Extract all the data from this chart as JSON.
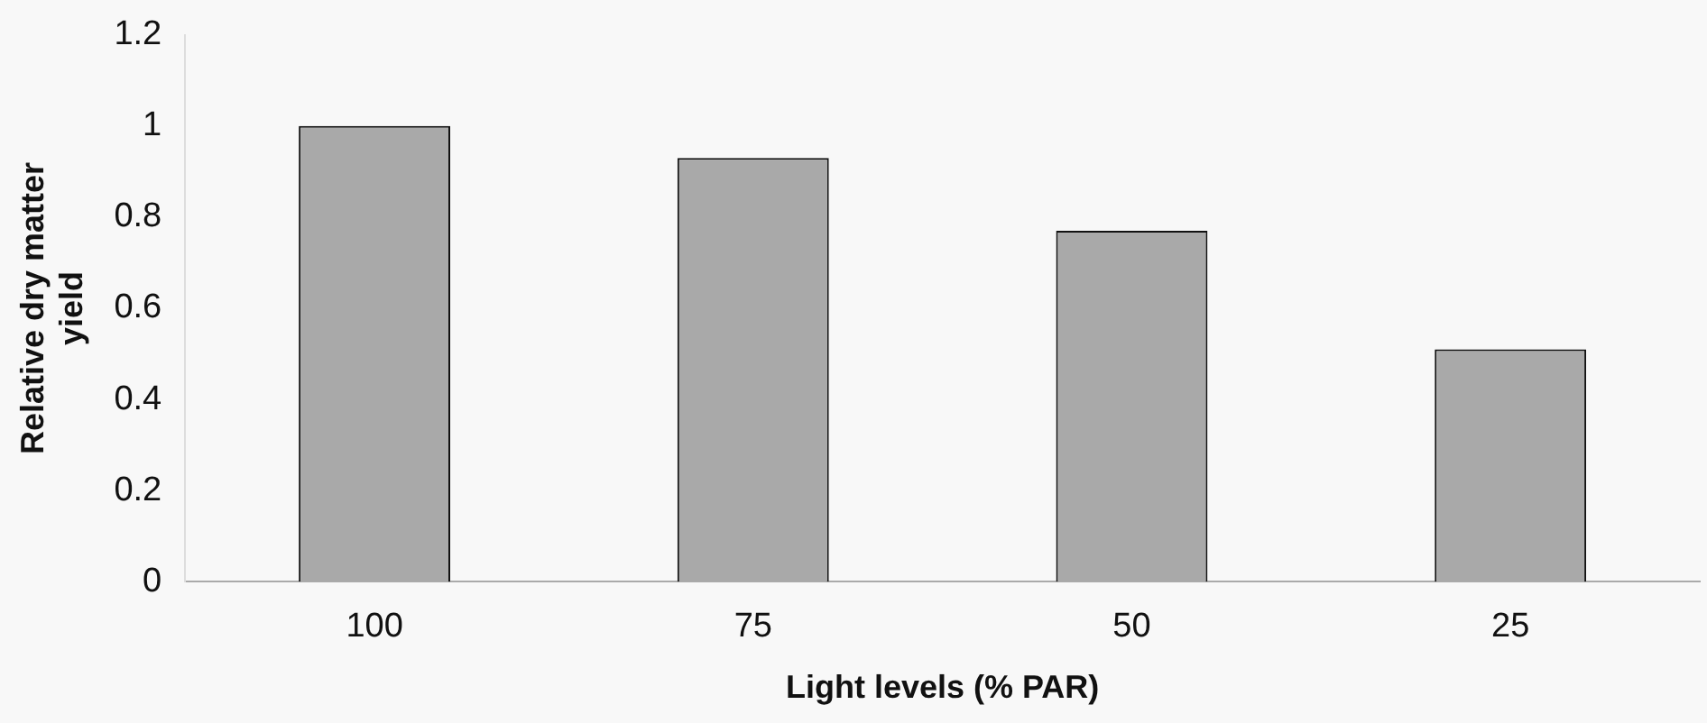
{
  "chart_data": {
    "type": "bar",
    "xlabel": "Light levels (% PAR)",
    "ylabel": "Relative dry matter yield",
    "categories": [
      "100",
      "75",
      "50",
      "25"
    ],
    "values": [
      1,
      0.93,
      0.77,
      0.51
    ],
    "color": "#a9a9a9",
    "ylim": [
      0,
      1.2
    ],
    "yticks": [
      0,
      0.2,
      0.4,
      0.6,
      0.8,
      1,
      1.2
    ],
    "grid": false,
    "legend": false
  }
}
